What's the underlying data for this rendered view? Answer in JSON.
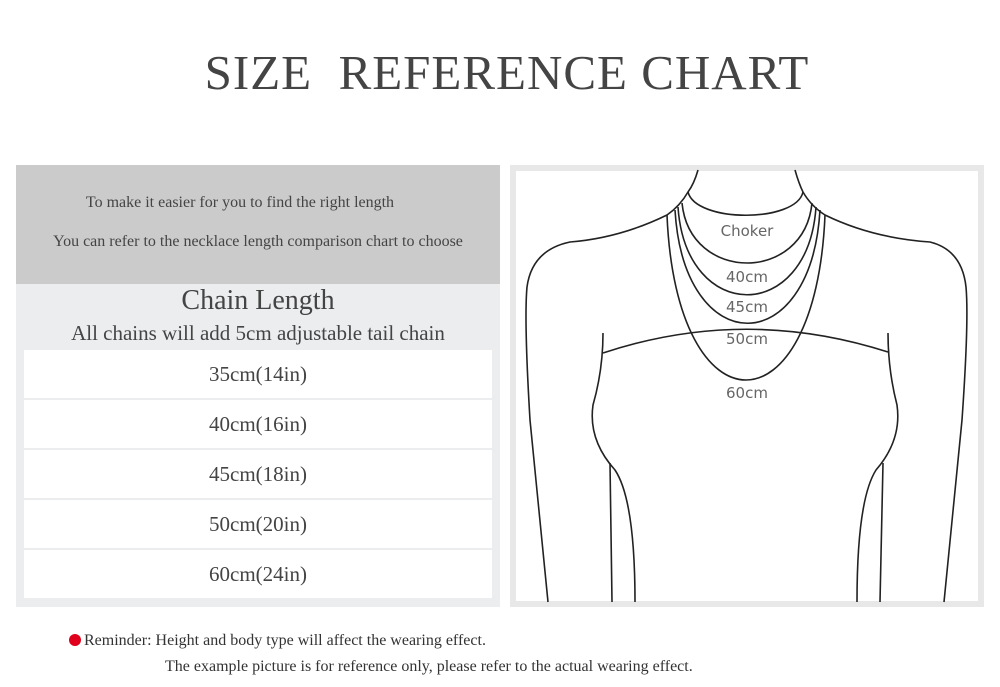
{
  "title": "SIZE  REFERENCE CHART",
  "intro": {
    "line1": "To make it easier for you to find the right length",
    "line2": "You can refer to the necklace length comparison chart to choose"
  },
  "chain_length": {
    "title": "Chain Length",
    "subtitle": "All chains will add 5cm adjustable tail chain",
    "sizes": [
      "35cm(14in)",
      "40cm(16in)",
      "45cm(18in)",
      "50cm(20in)",
      "60cm(24in)"
    ]
  },
  "figure": {
    "labels": [
      "Choker",
      "40cm",
      "45cm",
      "50cm",
      "60cm"
    ]
  },
  "reminder": {
    "line1": "Reminder: Height and body type will affect the wearing effect.",
    "line2": "The example picture is for reference only, please refer to the actual wearing effect.",
    "dot_color": "#e0001b"
  }
}
